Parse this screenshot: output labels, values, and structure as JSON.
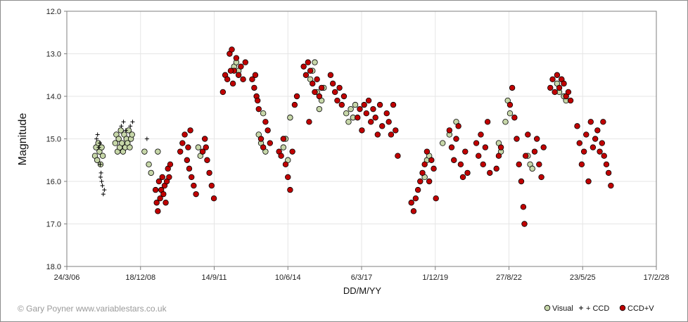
{
  "colors": {
    "visual": "#c6d6a8",
    "ccd": "#000000",
    "ccdv": "#c00000",
    "grid": "#e6e6e6",
    "axis": "#7f7f7f"
  },
  "credit": "© Gary Poyner www.variablestars.co.uk",
  "chart_data": {
    "type": "scatter",
    "title": "",
    "xlabel": "DD/M/YY",
    "ylabel": "Magnitude",
    "ylim": [
      18.0,
      12.0
    ],
    "y_reversed": true,
    "x_range": [
      "2006-03-24",
      "2028-02-17"
    ],
    "x_ticks": [
      "24/3/06",
      "18/12/08",
      "14/9/11",
      "10/6/14",
      "6/3/17",
      "1/12/19",
      "27/8/22",
      "23/5/25",
      "17/2/28"
    ],
    "x_tick_dates": [
      "2006-03-24",
      "2008-12-18",
      "2011-09-14",
      "2014-06-10",
      "2017-03-06",
      "2019-12-01",
      "2022-08-27",
      "2025-05-23",
      "2028-02-17"
    ],
    "y_ticks": [
      "12.0",
      "13.0",
      "14.0",
      "15.0",
      "16.0",
      "17.0",
      "18.0"
    ],
    "grid": true,
    "legend": {
      "placement": "bottom-right",
      "entries": [
        "Visual",
        "+ CCD",
        "CCD+V"
      ]
    },
    "series": [
      {
        "name": "Visual",
        "marker": "circle",
        "points": [
          [
            "2007-04-10",
            15.4
          ],
          [
            "2007-04-25",
            15.2
          ],
          [
            "2007-05-10",
            15.5
          ],
          [
            "2007-05-25",
            15.1
          ],
          [
            "2007-06-10",
            15.3
          ],
          [
            "2007-06-25",
            15.6
          ],
          [
            "2007-07-10",
            15.2
          ],
          [
            "2007-07-25",
            15.4
          ],
          [
            "2008-01-10",
            15.1
          ],
          [
            "2008-01-25",
            14.9
          ],
          [
            "2008-02-10",
            15.3
          ],
          [
            "2008-02-25",
            15.0
          ],
          [
            "2008-03-10",
            15.2
          ],
          [
            "2008-03-25",
            14.8
          ],
          [
            "2008-04-10",
            15.1
          ],
          [
            "2008-04-25",
            15.3
          ],
          [
            "2008-05-10",
            14.9
          ],
          [
            "2008-05-25",
            15.2
          ],
          [
            "2008-06-10",
            15.0
          ],
          [
            "2008-06-25",
            15.1
          ],
          [
            "2008-07-10",
            14.8
          ],
          [
            "2008-07-25",
            15.2
          ],
          [
            "2008-08-10",
            15.0
          ],
          [
            "2008-08-25",
            14.9
          ],
          [
            "2009-02-10",
            15.3
          ],
          [
            "2009-04-10",
            15.6
          ],
          [
            "2009-05-10",
            15.8
          ],
          [
            "2009-08-10",
            15.3
          ],
          [
            "2011-02-10",
            15.2
          ],
          [
            "2011-03-10",
            15.4
          ],
          [
            "2011-04-10",
            15.3
          ],
          [
            "2012-06-10",
            13.3
          ],
          [
            "2012-07-10",
            13.2
          ],
          [
            "2012-08-10",
            13.4
          ],
          [
            "2013-05-10",
            14.9
          ],
          [
            "2013-06-10",
            15.1
          ],
          [
            "2013-07-10",
            14.4
          ],
          [
            "2013-08-10",
            15.3
          ],
          [
            "2014-04-10",
            15.2
          ],
          [
            "2014-05-10",
            15.0
          ],
          [
            "2014-06-10",
            15.5
          ],
          [
            "2014-07-10",
            14.5
          ],
          [
            "2015-04-10",
            13.6
          ],
          [
            "2015-05-10",
            13.4
          ],
          [
            "2015-06-10",
            13.2
          ],
          [
            "2015-07-10",
            13.9
          ],
          [
            "2015-08-10",
            14.3
          ],
          [
            "2015-09-10",
            14.1
          ],
          [
            "2015-10-10",
            13.8
          ],
          [
            "2016-08-10",
            14.4
          ],
          [
            "2016-09-10",
            14.6
          ],
          [
            "2016-10-10",
            14.3
          ],
          [
            "2016-11-10",
            14.5
          ],
          [
            "2016-12-10",
            14.2
          ],
          [
            "2019-07-10",
            15.9
          ],
          [
            "2019-08-10",
            15.5
          ],
          [
            "2019-09-10",
            15.4
          ],
          [
            "2020-03-10",
            15.1
          ],
          [
            "2020-06-10",
            14.9
          ],
          [
            "2020-09-10",
            14.6
          ],
          [
            "2022-04-10",
            15.1
          ],
          [
            "2022-05-10",
            15.3
          ],
          [
            "2022-07-10",
            14.6
          ],
          [
            "2022-08-10",
            14.1
          ],
          [
            "2022-09-10",
            14.4
          ],
          [
            "2023-05-10",
            15.4
          ],
          [
            "2023-06-10",
            15.6
          ],
          [
            "2023-07-10",
            15.7
          ],
          [
            "2024-06-10",
            13.7
          ],
          [
            "2024-07-10",
            13.9
          ],
          [
            "2024-08-10",
            13.6
          ],
          [
            "2024-09-10",
            14.0
          ],
          [
            "2024-10-10",
            14.1
          ]
        ]
      },
      {
        "name": "+ CCD",
        "marker": "plus",
        "points": [
          [
            "2007-05-01",
            15.0
          ],
          [
            "2007-05-15",
            14.9
          ],
          [
            "2007-06-01",
            15.2
          ],
          [
            "2007-06-15",
            15.1
          ],
          [
            "2007-07-01",
            15.8
          ],
          [
            "2007-07-10",
            16.0
          ],
          [
            "2007-07-20",
            16.1
          ],
          [
            "2007-08-01",
            16.3
          ],
          [
            "2007-08-15",
            16.2
          ],
          [
            "2007-06-20",
            15.6
          ],
          [
            "2007-06-25",
            15.9
          ],
          [
            "2008-04-01",
            14.7
          ],
          [
            "2008-05-01",
            14.6
          ],
          [
            "2008-06-01",
            14.8
          ],
          [
            "2008-08-01",
            14.7
          ],
          [
            "2008-09-01",
            14.6
          ],
          [
            "2009-03-15",
            15.0
          ]
        ]
      },
      {
        "name": "CCD+V",
        "marker": "circle",
        "points": [
          [
            "2009-07-10",
            16.2
          ],
          [
            "2009-07-25",
            16.5
          ],
          [
            "2009-08-10",
            16.7
          ],
          [
            "2009-08-25",
            16.0
          ],
          [
            "2009-09-10",
            16.4
          ],
          [
            "2009-09-25",
            16.2
          ],
          [
            "2009-10-10",
            15.9
          ],
          [
            "2009-10-25",
            16.3
          ],
          [
            "2009-11-10",
            16.1
          ],
          [
            "2009-11-25",
            16.5
          ],
          [
            "2009-12-10",
            16.0
          ],
          [
            "2009-12-25",
            15.7
          ],
          [
            "2010-01-10",
            15.9
          ],
          [
            "2010-01-25",
            15.6
          ],
          [
            "2010-06-10",
            15.3
          ],
          [
            "2010-07-10",
            15.1
          ],
          [
            "2010-08-10",
            14.9
          ],
          [
            "2010-09-10",
            15.5
          ],
          [
            "2010-10-10",
            15.7
          ],
          [
            "2010-11-10",
            15.9
          ],
          [
            "2010-12-10",
            16.1
          ],
          [
            "2010-09-25",
            15.2
          ],
          [
            "2010-10-25",
            14.8
          ],
          [
            "2011-01-10",
            16.3
          ],
          [
            "2011-04-10",
            15.3
          ],
          [
            "2011-05-10",
            15.0
          ],
          [
            "2011-06-10",
            15.5
          ],
          [
            "2011-07-10",
            15.8
          ],
          [
            "2011-08-10",
            16.1
          ],
          [
            "2011-09-10",
            16.4
          ],
          [
            "2011-05-25",
            15.2
          ],
          [
            "2012-01-10",
            13.9
          ],
          [
            "2012-02-10",
            13.5
          ],
          [
            "2012-03-10",
            13.6
          ],
          [
            "2012-04-10",
            13.0
          ],
          [
            "2012-05-10",
            12.9
          ],
          [
            "2012-06-10",
            13.4
          ],
          [
            "2012-07-10",
            13.1
          ],
          [
            "2012-08-10",
            13.5
          ],
          [
            "2012-09-10",
            13.3
          ],
          [
            "2012-10-10",
            13.6
          ],
          [
            "2012-11-10",
            13.2
          ],
          [
            "2012-04-25",
            13.4
          ],
          [
            "2012-05-25",
            13.7
          ],
          [
            "2013-02-10",
            13.6
          ],
          [
            "2013-03-10",
            13.8
          ],
          [
            "2013-04-10",
            14.0
          ],
          [
            "2013-05-10",
            14.3
          ],
          [
            "2013-06-10",
            15.0
          ],
          [
            "2013-07-10",
            15.2
          ],
          [
            "2013-08-10",
            14.6
          ],
          [
            "2013-09-10",
            14.8
          ],
          [
            "2013-10-10",
            15.1
          ],
          [
            "2013-03-25",
            13.5
          ],
          [
            "2013-04-25",
            14.1
          ],
          [
            "2014-02-10",
            15.3
          ],
          [
            "2014-03-10",
            15.4
          ],
          [
            "2014-04-10",
            15.0
          ],
          [
            "2014-05-10",
            15.6
          ],
          [
            "2014-06-10",
            15.9
          ],
          [
            "2014-07-10",
            16.2
          ],
          [
            "2014-08-10",
            15.3
          ],
          [
            "2014-09-10",
            14.2
          ],
          [
            "2014-10-10",
            14.0
          ],
          [
            "2015-01-10",
            13.3
          ],
          [
            "2015-02-10",
            13.5
          ],
          [
            "2015-03-10",
            13.2
          ],
          [
            "2015-04-10",
            13.4
          ],
          [
            "2015-05-10",
            13.7
          ],
          [
            "2015-06-10",
            13.9
          ],
          [
            "2015-07-10",
            13.6
          ],
          [
            "2015-08-10",
            14.0
          ],
          [
            "2015-09-10",
            13.8
          ],
          [
            "2015-03-25",
            14.6
          ],
          [
            "2016-01-10",
            13.5
          ],
          [
            "2016-02-10",
            13.7
          ],
          [
            "2016-03-10",
            13.9
          ],
          [
            "2016-04-10",
            14.1
          ],
          [
            "2016-05-10",
            13.8
          ],
          [
            "2016-06-10",
            14.2
          ],
          [
            "2016-07-10",
            14.0
          ],
          [
            "2017-01-10",
            14.5
          ],
          [
            "2017-02-10",
            14.3
          ],
          [
            "2017-03-10",
            14.8
          ],
          [
            "2017-04-10",
            14.2
          ],
          [
            "2017-05-10",
            14.4
          ],
          [
            "2017-06-10",
            14.1
          ],
          [
            "2017-07-10",
            14.6
          ],
          [
            "2017-08-10",
            14.3
          ],
          [
            "2017-09-10",
            14.5
          ],
          [
            "2017-10-10",
            14.9
          ],
          [
            "2017-11-10",
            14.2
          ],
          [
            "2017-12-10",
            14.7
          ],
          [
            "2018-02-10",
            14.4
          ],
          [
            "2018-03-10",
            14.6
          ],
          [
            "2018-04-10",
            14.9
          ],
          [
            "2018-05-10",
            14.2
          ],
          [
            "2018-06-10",
            14.8
          ],
          [
            "2018-07-10",
            15.4
          ],
          [
            "2019-01-10",
            16.5
          ],
          [
            "2019-02-10",
            16.7
          ],
          [
            "2019-03-10",
            16.4
          ],
          [
            "2019-04-10",
            16.2
          ],
          [
            "2019-05-10",
            16.0
          ],
          [
            "2019-06-10",
            15.8
          ],
          [
            "2019-07-10",
            15.6
          ],
          [
            "2019-08-10",
            15.3
          ],
          [
            "2019-09-10",
            16.0
          ],
          [
            "2019-10-10",
            15.5
          ],
          [
            "2019-11-10",
            15.7
          ],
          [
            "2019-12-10",
            16.4
          ],
          [
            "2020-06-10",
            14.8
          ],
          [
            "2020-07-10",
            15.2
          ],
          [
            "2020-08-10",
            15.5
          ],
          [
            "2020-09-10",
            15.0
          ],
          [
            "2020-10-10",
            14.7
          ],
          [
            "2020-11-10",
            15.6
          ],
          [
            "2020-12-10",
            15.9
          ],
          [
            "2021-01-10",
            15.3
          ],
          [
            "2021-02-10",
            15.8
          ],
          [
            "2021-06-10",
            15.1
          ],
          [
            "2021-07-10",
            15.4
          ],
          [
            "2021-08-10",
            14.9
          ],
          [
            "2021-09-10",
            15.6
          ],
          [
            "2021-10-10",
            15.2
          ],
          [
            "2021-11-10",
            14.6
          ],
          [
            "2021-12-10",
            15.8
          ],
          [
            "2022-03-10",
            15.7
          ],
          [
            "2022-04-10",
            15.4
          ],
          [
            "2022-05-10",
            15.2
          ],
          [
            "2022-09-10",
            14.2
          ],
          [
            "2022-10-10",
            13.8
          ],
          [
            "2022-11-10",
            14.5
          ],
          [
            "2022-12-10",
            15.0
          ],
          [
            "2023-01-10",
            15.6
          ],
          [
            "2023-02-10",
            16.0
          ],
          [
            "2023-03-10",
            16.6
          ],
          [
            "2023-03-25",
            17.0
          ],
          [
            "2023-04-10",
            15.4
          ],
          [
            "2023-05-10",
            14.9
          ],
          [
            "2023-08-10",
            15.3
          ],
          [
            "2023-09-10",
            15.0
          ],
          [
            "2023-10-10",
            15.6
          ],
          [
            "2023-11-10",
            15.9
          ],
          [
            "2023-12-10",
            15.2
          ],
          [
            "2024-03-10",
            13.8
          ],
          [
            "2024-04-10",
            13.6
          ],
          [
            "2024-05-10",
            13.9
          ],
          [
            "2024-06-10",
            13.5
          ],
          [
            "2024-07-10",
            13.8
          ],
          [
            "2024-08-10",
            13.6
          ],
          [
            "2024-09-10",
            13.7
          ],
          [
            "2024-10-10",
            14.0
          ],
          [
            "2024-11-10",
            13.9
          ],
          [
            "2024-12-10",
            14.1
          ],
          [
            "2025-03-10",
            14.7
          ],
          [
            "2025-04-10",
            15.1
          ],
          [
            "2025-05-10",
            15.6
          ],
          [
            "2025-06-10",
            15.3
          ],
          [
            "2025-07-10",
            14.9
          ],
          [
            "2025-08-10",
            16.0
          ],
          [
            "2025-09-10",
            14.6
          ],
          [
            "2025-10-10",
            15.2
          ],
          [
            "2025-11-10",
            15.0
          ],
          [
            "2025-12-10",
            14.8
          ],
          [
            "2026-01-10",
            15.3
          ],
          [
            "2026-02-10",
            15.1
          ],
          [
            "2026-03-10",
            15.4
          ],
          [
            "2026-04-10",
            15.6
          ],
          [
            "2026-05-10",
            15.8
          ],
          [
            "2026-06-10",
            16.1
          ],
          [
            "2026-02-25",
            14.6
          ]
        ]
      }
    ]
  }
}
